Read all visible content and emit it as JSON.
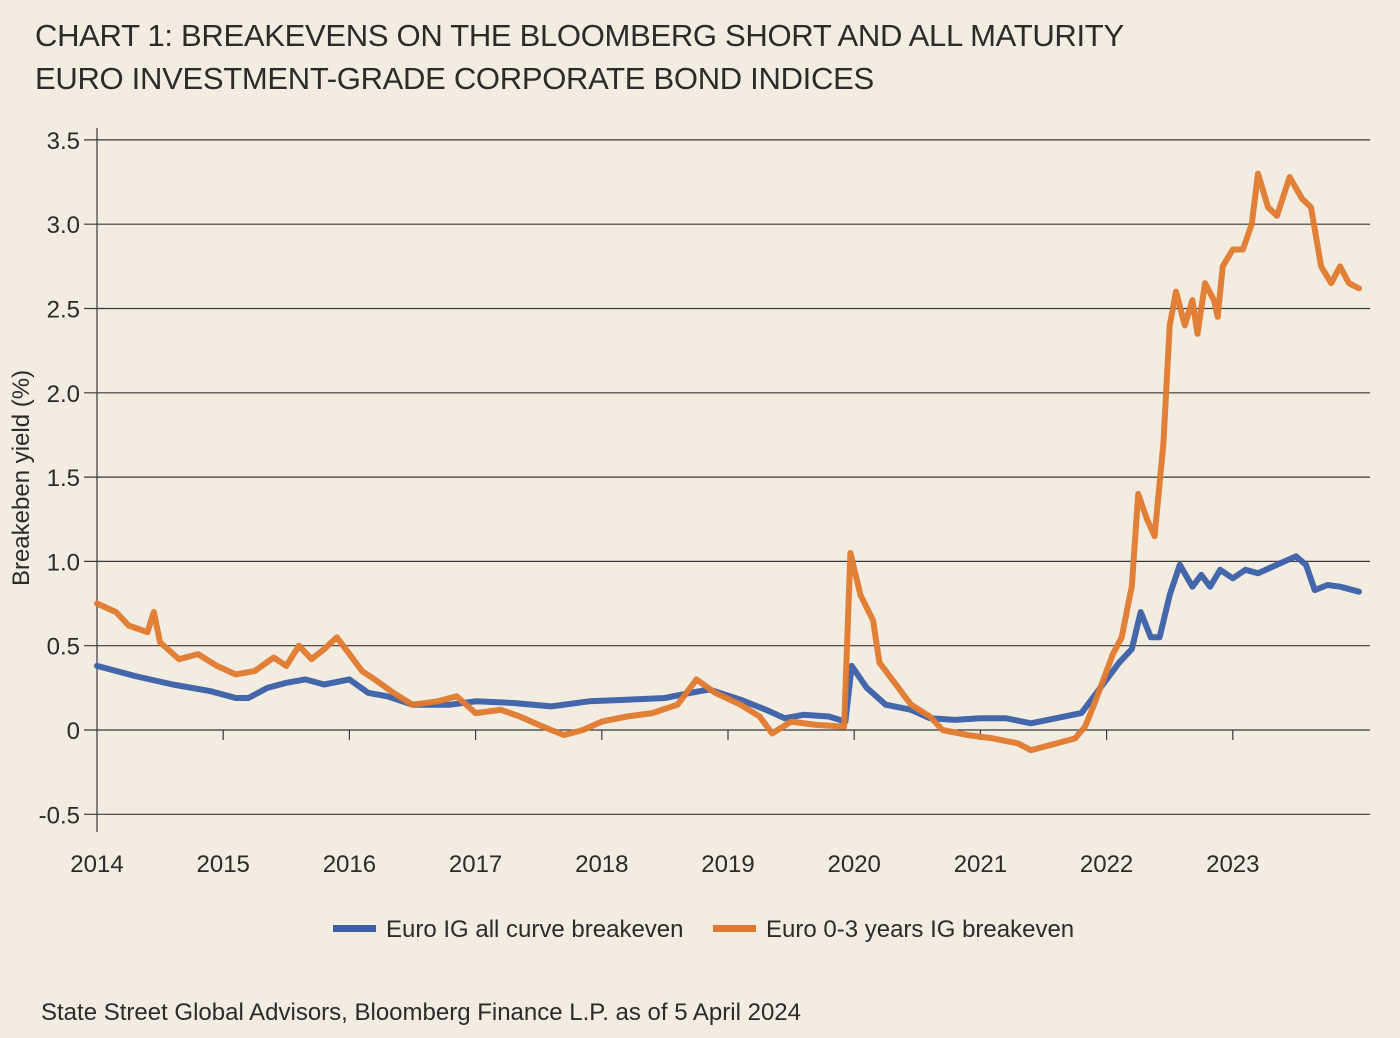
{
  "chart_data": {
    "type": "line",
    "title": "CHART 1: BREAKEVENS ON THE BLOOMBERG SHORT AND ALL MATURITY EURO INVESTMENT-GRADE CORPORATE BOND INDICES",
    "title_lines": [
      "CHART 1: BREAKEVENS ON THE BLOOMBERG SHORT AND ALL MATURITY",
      "EURO INVESTMENT-GRADE CORPORATE BOND INDICES"
    ],
    "xlabel": "",
    "ylabel": "Breakeben yield (%)",
    "xlim": [
      2014,
      2024.3
    ],
    "ylim": [
      -0.5,
      3.5
    ],
    "x_ticks": [
      2014,
      2015,
      2016,
      2017,
      2018,
      2019,
      2020,
      2021,
      2022,
      2023
    ],
    "x_tick_labels": [
      "2014",
      "2015",
      "2016",
      "2017",
      "2018",
      "2019",
      "2020",
      "2021",
      "2022",
      "2023"
    ],
    "y_ticks": [
      3.5,
      3.0,
      2.5,
      2.0,
      1.5,
      1.0,
      0.5,
      0,
      -0.5
    ],
    "y_tick_labels": [
      "3.5",
      "3.0",
      "2.5",
      "2.0",
      "1.5",
      "1.0",
      "0.5",
      "0",
      "-0.5"
    ],
    "grid": "horizontal",
    "legend_position": "bottom",
    "source": "State Street Global Advisors, Bloomberg Finance L.P. as of 5 April 2024",
    "series": [
      {
        "name": "Euro IG all curve breakeven",
        "color": "#3a5fa8",
        "x": [
          2014.0,
          2014.3,
          2014.6,
          2014.9,
          2015.1,
          2015.2,
          2015.35,
          2015.5,
          2015.65,
          2015.8,
          2016.0,
          2016.15,
          2016.3,
          2016.5,
          2016.8,
          2017.0,
          2017.3,
          2017.6,
          2017.9,
          2018.2,
          2018.5,
          2018.7,
          2018.85,
          2019.1,
          2019.3,
          2019.45,
          2019.6,
          2019.8,
          2019.93,
          2019.98,
          2020.1,
          2020.25,
          2020.45,
          2020.6,
          2020.8,
          2021.0,
          2021.2,
          2021.4,
          2021.6,
          2021.8,
          2021.9,
          2022.0,
          2022.1,
          2022.2,
          2022.27,
          2022.35,
          2022.42,
          2022.5,
          2022.58,
          2022.68,
          2022.75,
          2022.82,
          2022.9,
          2023.0,
          2023.1,
          2023.2,
          2023.35,
          2023.5,
          2023.58,
          2023.65,
          2023.75,
          2023.85,
          2024.0
        ],
        "y": [
          0.38,
          0.32,
          0.27,
          0.23,
          0.19,
          0.19,
          0.25,
          0.28,
          0.3,
          0.27,
          0.3,
          0.22,
          0.2,
          0.15,
          0.15,
          0.17,
          0.16,
          0.14,
          0.17,
          0.18,
          0.19,
          0.22,
          0.24,
          0.18,
          0.12,
          0.07,
          0.09,
          0.08,
          0.05,
          0.38,
          0.25,
          0.15,
          0.12,
          0.07,
          0.06,
          0.07,
          0.07,
          0.04,
          0.07,
          0.1,
          0.2,
          0.3,
          0.4,
          0.48,
          0.7,
          0.55,
          0.55,
          0.8,
          0.98,
          0.85,
          0.92,
          0.85,
          0.95,
          0.9,
          0.95,
          0.93,
          0.98,
          1.03,
          0.98,
          0.83,
          0.86,
          0.85,
          0.82
        ]
      },
      {
        "name": "Euro 0-3 years IG breakeven",
        "color": "#e07a2e",
        "x": [
          2014.0,
          2014.15,
          2014.25,
          2014.4,
          2014.45,
          2014.5,
          2014.65,
          2014.8,
          2014.95,
          2015.1,
          2015.25,
          2015.4,
          2015.5,
          2015.6,
          2015.7,
          2015.8,
          2015.9,
          2016.0,
          2016.1,
          2016.2,
          2016.35,
          2016.5,
          2016.7,
          2016.85,
          2017.0,
          2017.2,
          2017.35,
          2017.5,
          2017.7,
          2017.85,
          2018.0,
          2018.2,
          2018.4,
          2018.6,
          2018.75,
          2018.9,
          2019.1,
          2019.25,
          2019.35,
          2019.5,
          2019.7,
          2019.92,
          2019.97,
          2020.05,
          2020.15,
          2020.2,
          2020.3,
          2020.45,
          2020.6,
          2020.7,
          2020.9,
          2021.1,
          2021.3,
          2021.4,
          2021.6,
          2021.75,
          2021.83,
          2021.9,
          2022.0,
          2022.05,
          2022.12,
          2022.18,
          2022.2,
          2022.25,
          2022.32,
          2022.38,
          2022.45,
          2022.5,
          2022.55,
          2022.62,
          2022.68,
          2022.72,
          2022.78,
          2022.85,
          2022.88,
          2022.92,
          2023.0,
          2023.08,
          2023.15,
          2023.2,
          2023.28,
          2023.35,
          2023.45,
          2023.55,
          2023.62,
          2023.7,
          2023.78,
          2023.85,
          2023.92,
          2024.0
        ],
        "y": [
          0.75,
          0.7,
          0.62,
          0.58,
          0.7,
          0.52,
          0.42,
          0.45,
          0.38,
          0.33,
          0.35,
          0.43,
          0.38,
          0.5,
          0.42,
          0.48,
          0.55,
          0.45,
          0.35,
          0.3,
          0.22,
          0.15,
          0.17,
          0.2,
          0.1,
          0.12,
          0.08,
          0.03,
          -0.03,
          0.0,
          0.05,
          0.08,
          0.1,
          0.15,
          0.3,
          0.22,
          0.15,
          0.08,
          -0.02,
          0.05,
          0.03,
          0.02,
          1.05,
          0.8,
          0.65,
          0.4,
          0.3,
          0.15,
          0.08,
          0.0,
          -0.03,
          -0.05,
          -0.08,
          -0.12,
          -0.08,
          -0.05,
          0.02,
          0.15,
          0.35,
          0.45,
          0.55,
          0.78,
          0.85,
          1.4,
          1.25,
          1.15,
          1.7,
          2.4,
          2.6,
          2.4,
          2.55,
          2.35,
          2.65,
          2.55,
          2.45,
          2.75,
          2.85,
          2.85,
          3.0,
          3.3,
          3.1,
          3.05,
          3.28,
          3.15,
          3.1,
          2.75,
          2.65,
          2.75,
          2.65,
          2.62
        ]
      }
    ]
  }
}
